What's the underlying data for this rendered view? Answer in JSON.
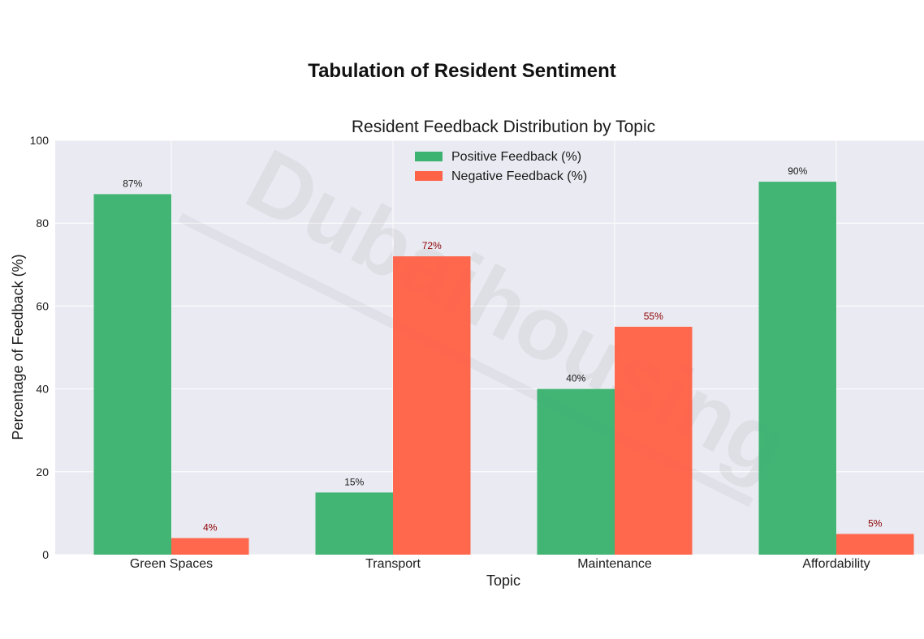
{
  "suptitle": "Tabulation of Resident Sentiment",
  "watermark": "Dubaihousing",
  "chart_data": {
    "type": "bar",
    "title": "Resident Feedback Distribution by Topic",
    "xlabel": "Topic",
    "ylabel": "Percentage of Feedback (%)",
    "ylim": [
      0,
      100
    ],
    "yticks": [
      0,
      20,
      40,
      60,
      80,
      100
    ],
    "grid": true,
    "legend_position": "top-center",
    "categories": [
      "Green Spaces",
      "Transport",
      "Maintenance",
      "Affordability"
    ],
    "series": [
      {
        "name": "Positive Feedback (%)",
        "values": [
          87,
          15,
          40,
          90
        ],
        "labels": [
          "87%",
          "15%",
          "40%",
          "90%"
        ],
        "color": "#3cb371",
        "label_color": "#1a1a1a"
      },
      {
        "name": "Negative Feedback (%)",
        "values": [
          4,
          72,
          55,
          5
        ],
        "labels": [
          "4%",
          "72%",
          "55%",
          "5%"
        ],
        "color": "#ff6347",
        "label_color": "#8b0000"
      }
    ]
  }
}
